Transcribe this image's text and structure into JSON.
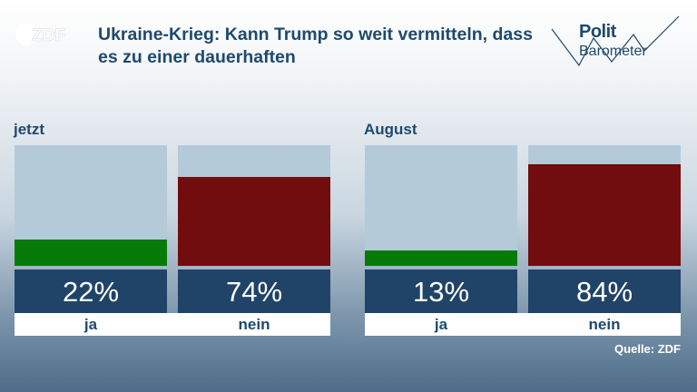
{
  "header": {
    "logo_text": "ZDF",
    "title": "Ukraine-Krieg: Kann Trump so weit vermitteln, dass es zu einer dauerhaften",
    "brand_line1": "Polit",
    "brand_line2": "Barometer"
  },
  "chart_data": [
    {
      "type": "bar",
      "title": "jetzt",
      "categories": [
        "ja",
        "nein"
      ],
      "values": [
        22,
        74
      ],
      "value_labels": [
        "22%",
        "74%"
      ],
      "ylim": [
        0,
        100
      ],
      "colors": [
        "#077b07",
        "#720d0f"
      ]
    },
    {
      "type": "bar",
      "title": "August",
      "categories": [
        "ja",
        "nein"
      ],
      "values": [
        13,
        84
      ],
      "value_labels": [
        "13%",
        "84%"
      ],
      "ylim": [
        0,
        100
      ],
      "colors": [
        "#077b07",
        "#720d0f"
      ]
    }
  ],
  "footer": {
    "source": "Quelle: ZDF"
  },
  "colors": {
    "ja": "#077b07",
    "nein": "#720d0f",
    "title": "#1e4a6e",
    "value_box": "#1f4468"
  }
}
